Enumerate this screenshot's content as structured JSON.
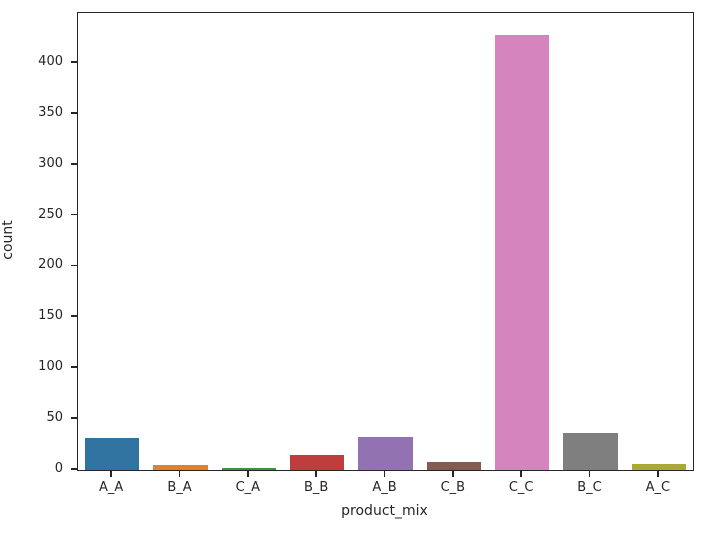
{
  "chart_data": {
    "type": "bar",
    "title": "",
    "xlabel": "product_mix",
    "ylabel": "count",
    "categories": [
      "A_A",
      "B_A",
      "C_A",
      "B_B",
      "A_B",
      "C_B",
      "C_C",
      "B_C",
      "A_C"
    ],
    "values": [
      31,
      5,
      2,
      15,
      32,
      8,
      427,
      36,
      6
    ],
    "bar_colors": [
      "#3274a1",
      "#e1812c",
      "#3a923a",
      "#c03d3e",
      "#9372b2",
      "#845b53",
      "#d684bd",
      "#7f7f7f",
      "#a9aa35"
    ],
    "ylim": [
      0,
      449
    ],
    "yticks": [
      0,
      50,
      100,
      150,
      200,
      250,
      300,
      350,
      400
    ],
    "grid": false,
    "legend": false,
    "bar_width_fraction": 0.8
  },
  "style": {
    "axis_color": "#262626",
    "text_color": "#262626",
    "background_color": "#ffffff"
  }
}
